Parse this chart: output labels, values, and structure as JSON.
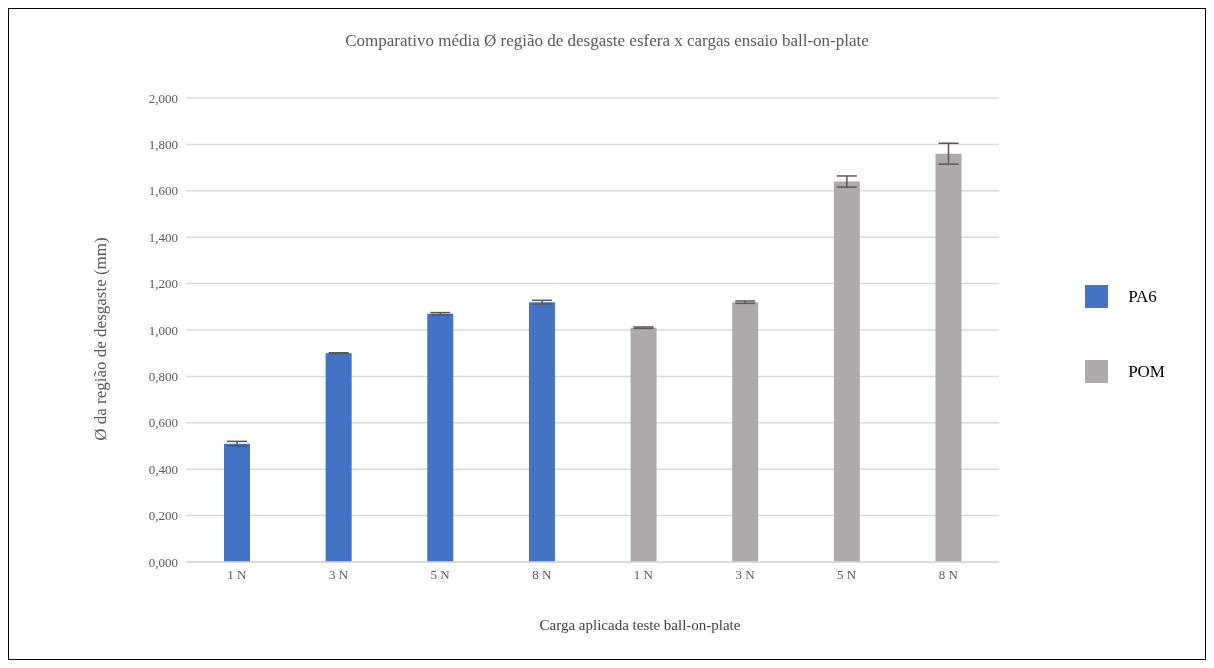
{
  "chart_data": {
    "type": "bar",
    "title": "Comparativo média Ø região de desgaste esfera x cargas ensaio ball-on-plate",
    "xlabel": "Carga aplicada teste ball-on-plate",
    "ylabel": "Ø da região de desgaste (mm)",
    "categories": [
      "1 N",
      "3 N",
      "5 N",
      "8 N",
      "1 N",
      "3 N",
      "5 N",
      "8 N"
    ],
    "series": [
      {
        "name": "PA6",
        "color": "#4472c4",
        "values": [
          0.51,
          0.9,
          1.07,
          1.12,
          null,
          null,
          null,
          null
        ],
        "errors": [
          0.01,
          0.002,
          0.005,
          0.008,
          null,
          null,
          null,
          null
        ]
      },
      {
        "name": "POM",
        "color": "#aeaaaa",
        "values": [
          null,
          null,
          null,
          null,
          1.01,
          1.12,
          1.64,
          1.76
        ],
        "errors": [
          null,
          null,
          null,
          null,
          0.003,
          0.005,
          0.024,
          0.045
        ]
      }
    ],
    "ylim": [
      0,
      2
    ],
    "yticks": [
      {
        "value": 0,
        "label": "0,000"
      },
      {
        "value": 0.2,
        "label": "0,200"
      },
      {
        "value": 0.4,
        "label": "0,400"
      },
      {
        "value": 0.6,
        "label": "0,600"
      },
      {
        "value": 0.8,
        "label": "0,800"
      },
      {
        "value": 1,
        "label": "1,000"
      },
      {
        "value": 1.2,
        "label": "1,200"
      },
      {
        "value": 1.4,
        "label": "1,400"
      },
      {
        "value": 1.6,
        "label": "1,600"
      },
      {
        "value": 1.8,
        "label": "1,800"
      },
      {
        "value": 2,
        "label": "2,000"
      }
    ],
    "grid": "y",
    "legend": "right"
  }
}
